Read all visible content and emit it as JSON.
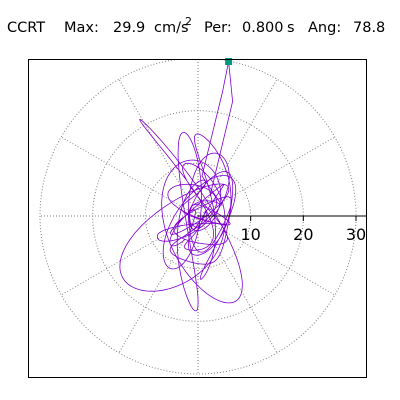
{
  "header": {
    "code": "CCRT",
    "max_label": "Max:",
    "max_value": "29.9",
    "max_unit": "cm/s",
    "max_unit_exponent": "2",
    "period_label": "Per:",
    "period_value": "0.800",
    "period_unit": "s",
    "angle_label": "Ang:",
    "angle_value": "78.8"
  },
  "chart_data": {
    "type": "polar-orbit",
    "radial_ticks": [
      "10",
      "20",
      "30"
    ],
    "radial_tick_values": [
      10,
      20,
      30
    ],
    "rmax": 30,
    "angular_grid_step_deg": 30,
    "grid": true,
    "peak_marker": {
      "radius": 29.9,
      "angle_deg": 78.8
    }
  },
  "colors": {
    "trace": "#8000d0",
    "peak_marker": "#009a80",
    "grid": "#808080",
    "frame": "#000000",
    "axis": "#000000"
  }
}
